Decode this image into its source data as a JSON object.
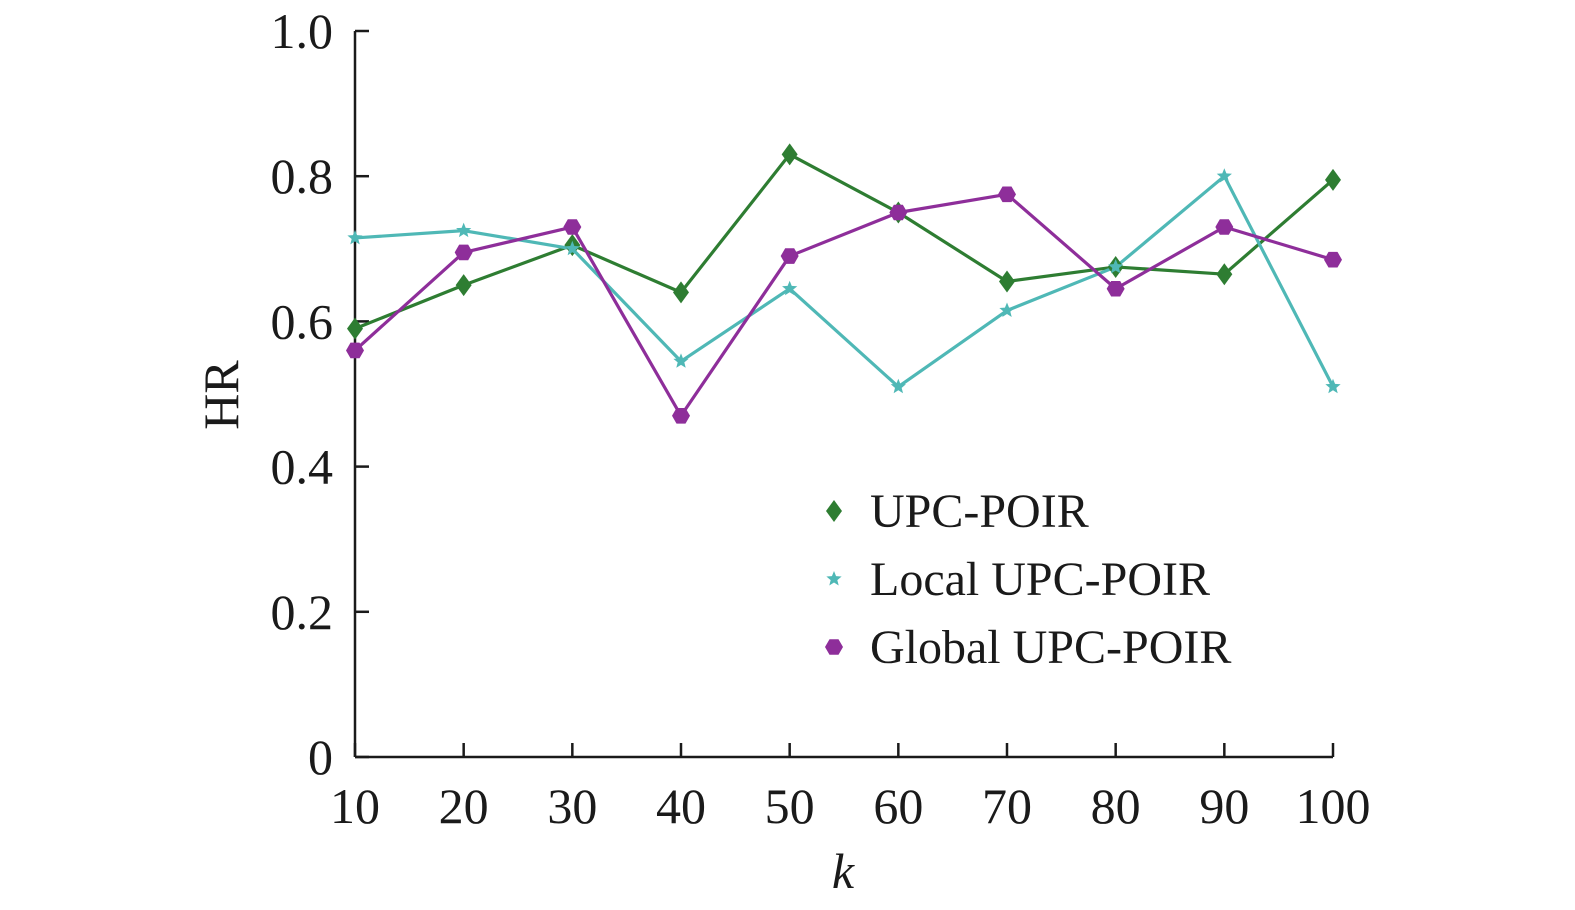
{
  "chart_data": {
    "type": "line",
    "title": "",
    "xlabel": "k",
    "ylabel": "HR",
    "categories": [
      "10",
      "20",
      "30",
      "40",
      "50",
      "60",
      "70",
      "80",
      "90",
      "100"
    ],
    "x": [
      10,
      20,
      30,
      40,
      50,
      60,
      70,
      80,
      90,
      100
    ],
    "xlim": [
      10,
      100
    ],
    "ylim": [
      0,
      1.0
    ],
    "yticks": [
      0,
      0.2,
      0.4,
      0.6,
      0.8,
      1.0
    ],
    "ytick_labels": [
      "0",
      "0.2",
      "0.4",
      "0.6",
      "0.8",
      "1.0"
    ],
    "grid": false,
    "legend_position": "lower-right",
    "series": [
      {
        "name": "UPC-POIR",
        "color": "#2e7d32",
        "marker": "diamond",
        "values": [
          0.59,
          0.65,
          0.705,
          0.64,
          0.83,
          0.75,
          0.655,
          0.675,
          0.665,
          0.795
        ]
      },
      {
        "name": "Local UPC-POIR",
        "color": "#4fb8b6",
        "marker": "star",
        "values": [
          0.715,
          0.725,
          0.7,
          0.545,
          0.645,
          0.51,
          0.615,
          0.675,
          0.8,
          0.51
        ]
      },
      {
        "name": "Global UPC-POIR",
        "color": "#8e2e9a",
        "marker": "hexagon",
        "values": [
          0.56,
          0.695,
          0.73,
          0.47,
          0.69,
          0.75,
          0.775,
          0.645,
          0.73,
          0.685
        ]
      }
    ]
  }
}
